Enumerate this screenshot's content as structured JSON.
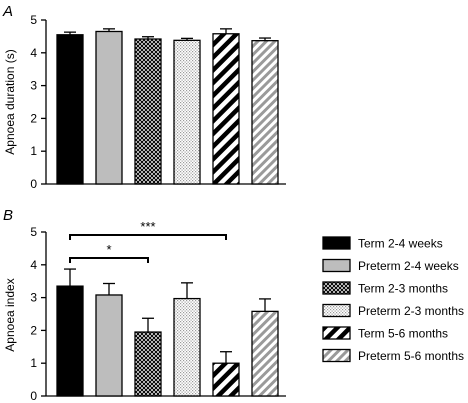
{
  "chart_data": [
    {
      "panel": "A",
      "type": "bar",
      "ylabel": "Apnoea duration (s)",
      "xlabel": "",
      "ylim": [
        0,
        5
      ],
      "yticks": [
        0,
        1,
        2,
        3,
        4,
        5
      ],
      "categories": [
        "Term 2-4 weeks",
        "Preterm 2-4 weeks",
        "Term 2-3 months",
        "Preterm 2-3 months",
        "Term 5-6 months",
        "Preterm 5-6 months"
      ],
      "values": [
        4.55,
        4.65,
        4.42,
        4.38,
        4.58,
        4.37
      ],
      "errors": [
        0.08,
        0.08,
        0.07,
        0.06,
        0.15,
        0.08
      ]
    },
    {
      "panel": "B",
      "type": "bar",
      "ylabel": "Apnoea index",
      "xlabel": "",
      "ylim": [
        0,
        5
      ],
      "yticks": [
        0,
        1,
        2,
        3,
        4,
        5
      ],
      "categories": [
        "Term 2-4 weeks",
        "Preterm 2-4 weeks",
        "Term 2-3 months",
        "Preterm 2-3 months",
        "Term 5-6 months",
        "Preterm 5-6 months"
      ],
      "values": [
        3.35,
        3.08,
        1.95,
        2.97,
        1.0,
        2.58
      ],
      "errors": [
        0.52,
        0.35,
        0.42,
        0.48,
        0.35,
        0.38
      ],
      "significance": [
        {
          "from": 0,
          "to": 2,
          "label": "*"
        },
        {
          "from": 0,
          "to": 4,
          "label": "***"
        }
      ]
    }
  ],
  "legend": {
    "position": "right",
    "entries": [
      {
        "label": "Term 2-4 weeks",
        "pattern": "solid-black"
      },
      {
        "label": "Preterm 2-4 weeks",
        "pattern": "solid-gray"
      },
      {
        "label": "Term 2-3 months",
        "pattern": "crosshatch"
      },
      {
        "label": "Preterm 2-3 months",
        "pattern": "fine-dots"
      },
      {
        "label": "Term 5-6 months",
        "pattern": "diagonal-black"
      },
      {
        "label": "Preterm 5-6 months",
        "pattern": "diagonal-gray"
      }
    ]
  },
  "colors": {
    "solid_black": "#000000",
    "solid_gray": "#bdbdbd",
    "hatch_gray": "#9a9a9a"
  }
}
